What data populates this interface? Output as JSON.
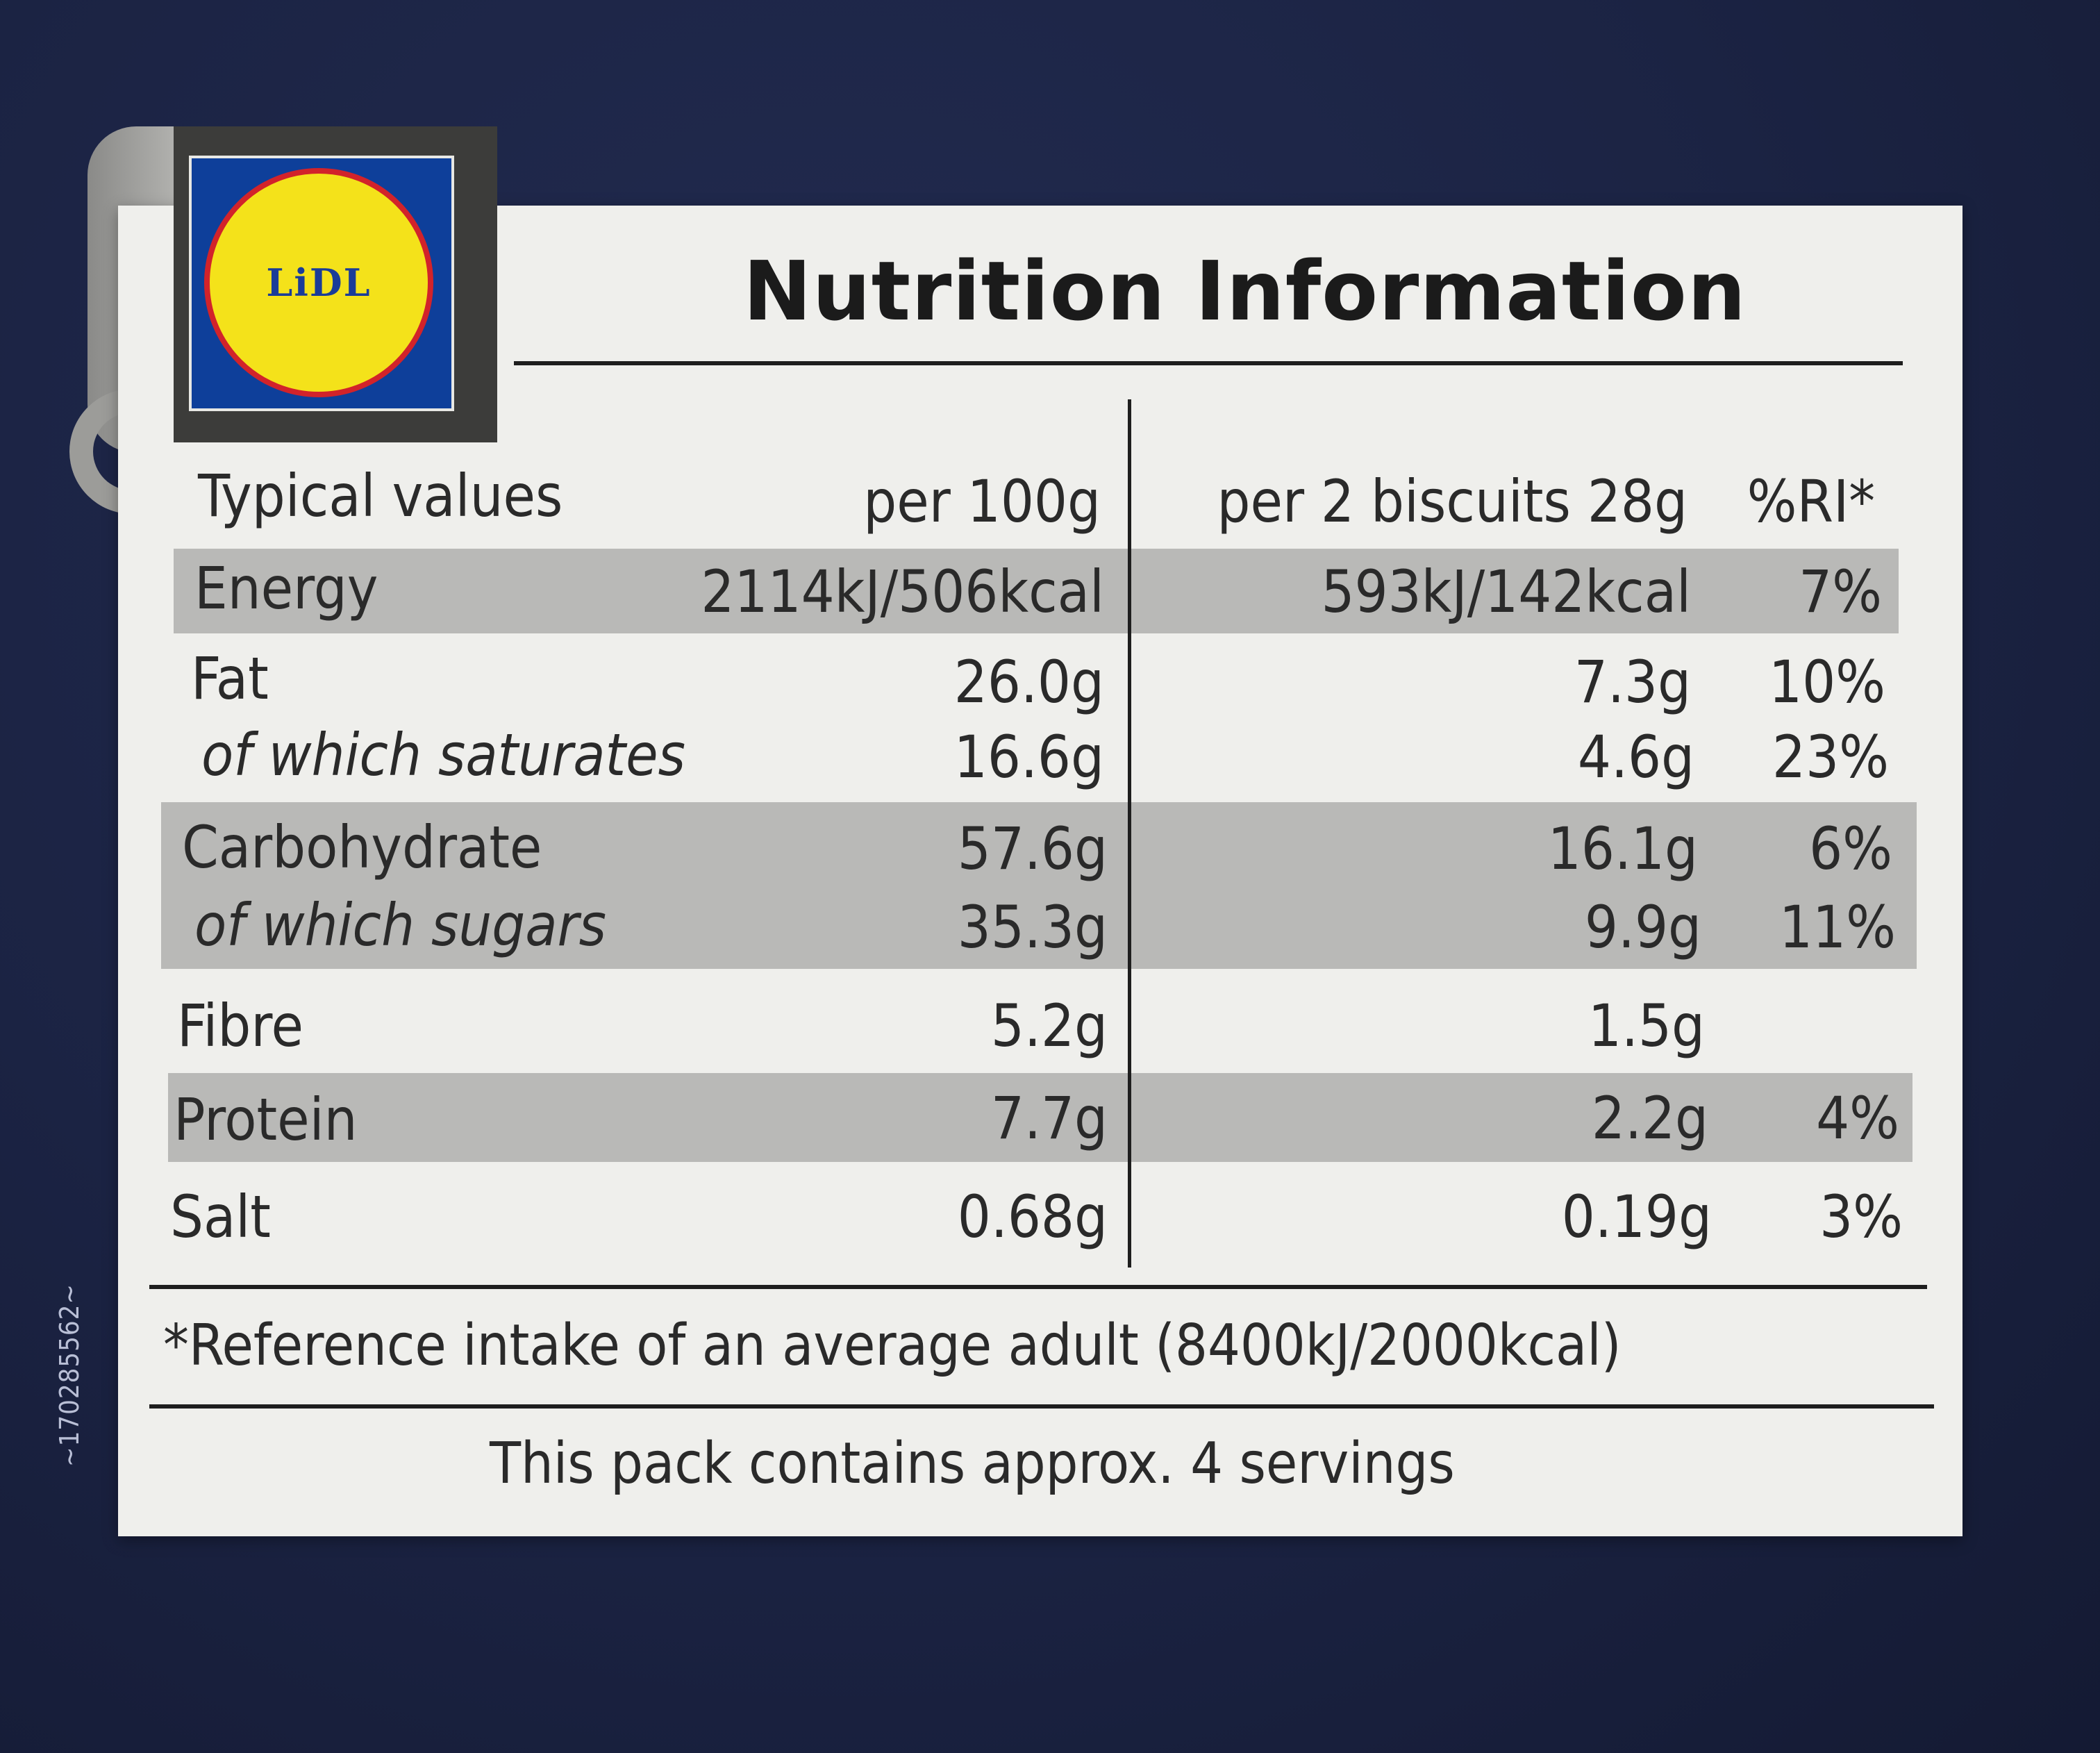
{
  "side_code": "~170285562~",
  "logo": {
    "text": "LiDL"
  },
  "title": "Nutrition Information",
  "header": {
    "typical": "Typical values",
    "per100": "per 100g",
    "perserving": "per 2 biscuits 28g",
    "ri": "%RI*"
  },
  "rows": [
    {
      "name": "Energy",
      "per100": "2114kJ/506kcal",
      "serving": "593kJ/142kcal",
      "ri": "7%"
    },
    {
      "name": "Fat",
      "per100": "26.0g",
      "serving": "7.3g",
      "ri": "10%"
    },
    {
      "name": "of which saturates",
      "per100": "16.6g",
      "serving": "4.6g",
      "ri": "23%"
    },
    {
      "name": "Carbohydrate",
      "per100": "57.6g",
      "serving": "16.1g",
      "ri": "6%"
    },
    {
      "name": "of which sugars",
      "per100": "35.3g",
      "serving": "9.9g",
      "ri": "11%"
    },
    {
      "name": "Fibre",
      "per100": "5.2g",
      "serving": "1.5g",
      "ri": ""
    },
    {
      "name": "Protein",
      "per100": "7.7g",
      "serving": "2.2g",
      "ri": "4%"
    },
    {
      "name": "Salt",
      "per100": "0.68g",
      "serving": "0.19g",
      "ri": "3%"
    }
  ],
  "footnote": "*Reference intake of an average adult (8400kJ/2000kcal)",
  "servings_note": "This pack contains approx. 4 servings"
}
